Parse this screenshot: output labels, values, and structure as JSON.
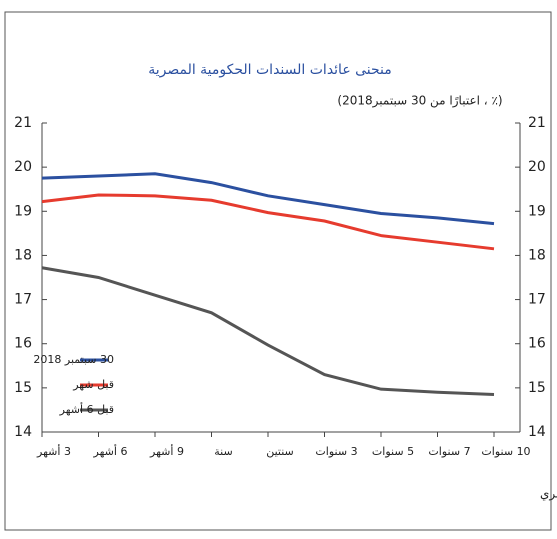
{
  "chart_data": {
    "type": "line",
    "title": "منحنى عائدات السندات الحكومية المصرية",
    "subtitle": "(٪ ، اعتبارًا من 30 سبتمبر2018)",
    "categories": [
      "3 أشهر",
      "6 أشهر",
      "9 أشهر",
      "سنة",
      "سنتين",
      "3 سنوات",
      "5 سنوات",
      "7 سنوات",
      "10 سنوات"
    ],
    "series": [
      {
        "name": "30 سبتمبر 2018",
        "color": "#2b50a0",
        "values": [
          19.75,
          19.8,
          19.85,
          19.65,
          19.35,
          19.15,
          18.95,
          18.85,
          18.72
        ]
      },
      {
        "name": "قبل شهر",
        "color": "#e63b2e",
        "values": [
          19.22,
          19.37,
          19.35,
          19.25,
          18.97,
          18.78,
          18.45,
          18.3,
          18.15
        ]
      },
      {
        "name": "قبل 6 أشهر",
        "color": "#555555",
        "values": [
          17.72,
          17.5,
          17.1,
          16.7,
          15.97,
          15.3,
          14.97,
          14.9,
          14.85
        ]
      }
    ],
    "ylim": [
      14,
      21
    ],
    "yticks": [
      14,
      15,
      16,
      17,
      18,
      19,
      20,
      21
    ],
    "y2lim": [
      14,
      21
    ],
    "y2ticks": [
      14,
      15,
      16,
      17,
      18,
      19,
      20,
      21
    ],
    "legend": "lower left",
    "source": "المصدر : البنك المركزي المصري"
  }
}
